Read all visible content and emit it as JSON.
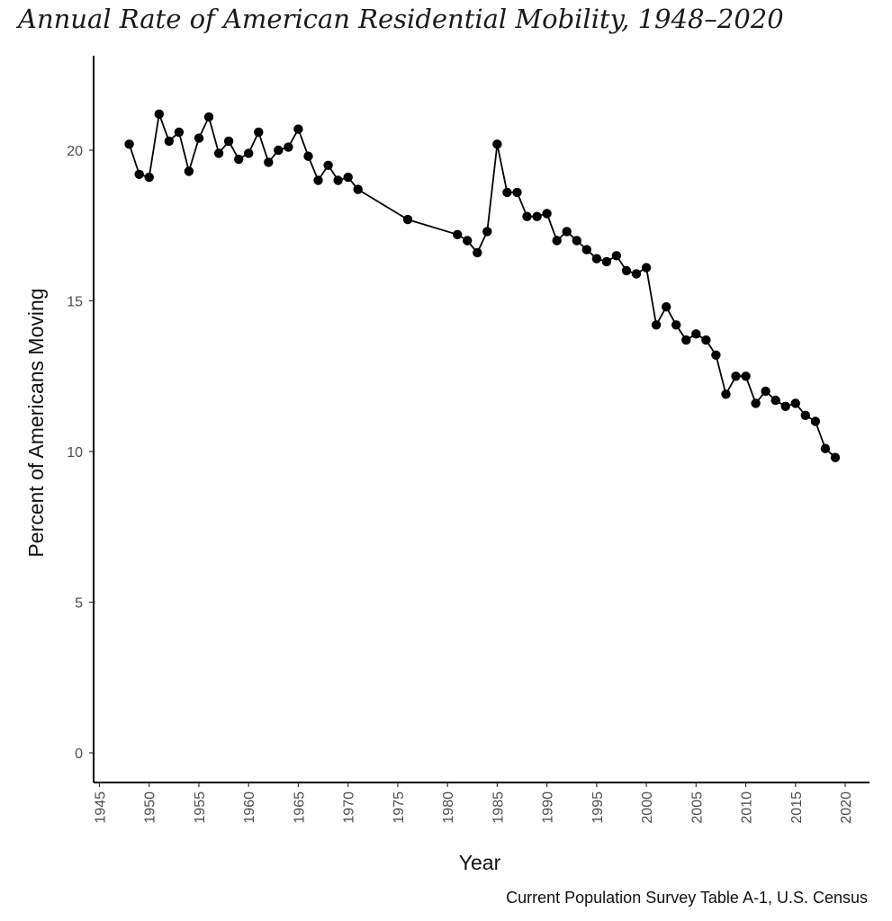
{
  "chart_data": {
    "type": "line",
    "title": "Annual Rate of American Residential Mobility, 1948–2020",
    "xlabel": "Year",
    "ylabel": "Percent of Americans Moving",
    "caption": "Current Population Survey Table A-1, U.S. Census",
    "xlim": [
      1945,
      2020
    ],
    "ylim": [
      0,
      22
    ],
    "x_ticks": [
      1945,
      1950,
      1955,
      1960,
      1965,
      1970,
      1975,
      1980,
      1985,
      1990,
      1995,
      2000,
      2005,
      2010,
      2015,
      2020
    ],
    "y_ticks": [
      0,
      5,
      10,
      15,
      20
    ],
    "grid": false,
    "series": [
      {
        "color": "#000000",
        "markers": true,
        "points": [
          [
            1948,
            20.2
          ],
          [
            1949,
            19.2
          ],
          [
            1950,
            19.1
          ],
          [
            1951,
            21.2
          ],
          [
            1952,
            20.3
          ],
          [
            1953,
            20.6
          ],
          [
            1954,
            19.3
          ],
          [
            1955,
            20.4
          ],
          [
            1956,
            21.1
          ],
          [
            1957,
            19.9
          ],
          [
            1958,
            20.3
          ],
          [
            1959,
            19.7
          ],
          [
            1960,
            19.9
          ],
          [
            1961,
            20.6
          ],
          [
            1962,
            19.6
          ],
          [
            1963,
            20.0
          ],
          [
            1964,
            20.1
          ],
          [
            1965,
            20.7
          ],
          [
            1966,
            19.8
          ],
          [
            1967,
            19.0
          ],
          [
            1968,
            19.5
          ],
          [
            1969,
            19.0
          ],
          [
            1970,
            19.1
          ],
          [
            1971,
            18.7
          ],
          [
            1976,
            17.7
          ],
          [
            1981,
            17.2
          ],
          [
            1982,
            17.0
          ],
          [
            1983,
            16.6
          ],
          [
            1984,
            17.3
          ],
          [
            1985,
            20.2
          ],
          [
            1986,
            18.6
          ],
          [
            1987,
            18.6
          ],
          [
            1988,
            17.8
          ],
          [
            1989,
            17.8
          ],
          [
            1990,
            17.9
          ],
          [
            1991,
            17.0
          ],
          [
            1992,
            17.3
          ],
          [
            1993,
            17.0
          ],
          [
            1994,
            16.7
          ],
          [
            1995,
            16.4
          ],
          [
            1996,
            16.3
          ],
          [
            1997,
            16.5
          ],
          [
            1998,
            16.0
          ],
          [
            1999,
            15.9
          ],
          [
            2000,
            16.1
          ],
          [
            2001,
            14.2
          ],
          [
            2002,
            14.8
          ],
          [
            2003,
            14.2
          ],
          [
            2004,
            13.7
          ],
          [
            2005,
            13.9
          ],
          [
            2006,
            13.7
          ],
          [
            2007,
            13.2
          ],
          [
            2008,
            11.9
          ],
          [
            2009,
            12.5
          ],
          [
            2010,
            12.5
          ],
          [
            2011,
            11.6
          ],
          [
            2012,
            12.0
          ],
          [
            2013,
            11.7
          ],
          [
            2014,
            11.5
          ],
          [
            2015,
            11.6
          ],
          [
            2016,
            11.2
          ],
          [
            2017,
            11.0
          ],
          [
            2018,
            10.1
          ],
          [
            2019,
            9.8
          ]
        ]
      }
    ]
  }
}
